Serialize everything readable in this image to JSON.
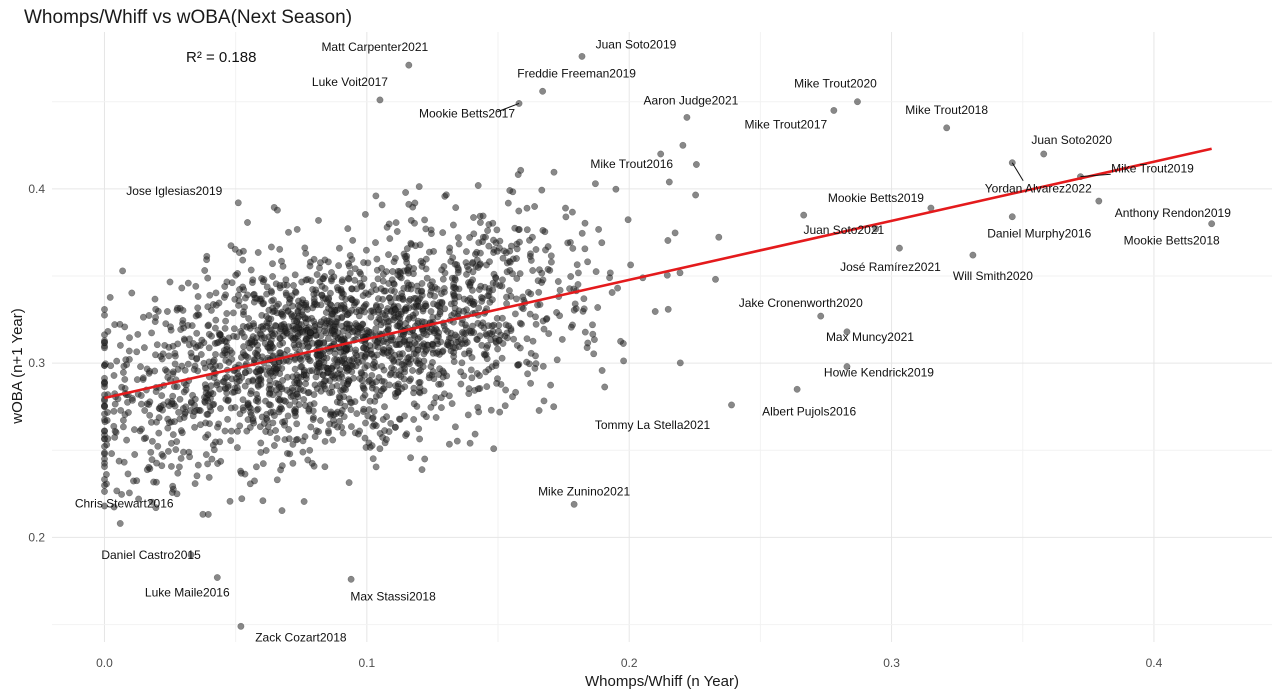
{
  "chart_data": {
    "type": "scatter",
    "title": "Whomps/Whiff vs wOBA(Next Season)",
    "xlabel": "Whomps/Whiff (n Year)",
    "ylabel": "wOBA (n+1 Year)",
    "xlim": [
      -0.02,
      0.445
    ],
    "ylim": [
      0.14,
      0.49
    ],
    "x_ticks": [
      0.0,
      0.1,
      0.2,
      0.3,
      0.4
    ],
    "x_tick_labels": [
      "0.0",
      "0.1",
      "0.2",
      "0.3",
      "0.4"
    ],
    "y_ticks": [
      0.2,
      0.3,
      0.4
    ],
    "y_tick_labels": [
      "0.2",
      "0.3",
      "0.4"
    ],
    "grid": true,
    "r_squared_label": "R² = 0.188",
    "trendline": {
      "x": [
        0.0,
        0.422
      ],
      "y": [
        0.28,
        0.423
      ],
      "color": "#e41a1c"
    },
    "point_color": "#262626",
    "cloud": {
      "description_free": true,
      "n": 2200,
      "x_center": 0.09,
      "x_spread": 0.045,
      "y_intercept": 0.28,
      "y_slope": 0.339,
      "y_spread": 0.03
    },
    "labeled_points": [
      {
        "name": "Matt Carpenter2021",
        "x": 0.116,
        "y": 0.471
      },
      {
        "name": "Juan Soto2019",
        "x": 0.182,
        "y": 0.476
      },
      {
        "name": "Freddie Freeman2019",
        "x": 0.167,
        "y": 0.456
      },
      {
        "name": "Luke Voit2017",
        "x": 0.105,
        "y": 0.451
      },
      {
        "name": "Mookie Betts2017",
        "x": 0.158,
        "y": 0.449
      },
      {
        "name": "Aaron Judge2021",
        "x": 0.222,
        "y": 0.441
      },
      {
        "name": "Mike Trout2020",
        "x": 0.287,
        "y": 0.45
      },
      {
        "name": "Mike Trout2017",
        "x": 0.278,
        "y": 0.445
      },
      {
        "name": "Mike Trout2018",
        "x": 0.321,
        "y": 0.435
      },
      {
        "name": "Mike Trout2016",
        "x": 0.212,
        "y": 0.42
      },
      {
        "name": "Juan Soto2020",
        "x": 0.358,
        "y": 0.42
      },
      {
        "name": "Mike Trout2019",
        "x": 0.372,
        "y": 0.407
      },
      {
        "name": "Jose Iglesias2019",
        "x": 0.051,
        "y": 0.392
      },
      {
        "name": "Mookie Betts2019",
        "x": 0.315,
        "y": 0.389
      },
      {
        "name": "Yordan Alvarez2022",
        "x": 0.346,
        "y": 0.415
      },
      {
        "name": "Anthony Rendon2019",
        "x": 0.379,
        "y": 0.393
      },
      {
        "name": "Daniel Murphy2016",
        "x": 0.346,
        "y": 0.384
      },
      {
        "name": "Juan Soto2021",
        "x": 0.294,
        "y": 0.377
      },
      {
        "name": "Mookie Betts2018",
        "x": 0.422,
        "y": 0.38
      },
      {
        "name": "José Ramírez2021",
        "x": 0.303,
        "y": 0.366
      },
      {
        "name": "Will Smith2020",
        "x": 0.331,
        "y": 0.362
      },
      {
        "name": "Jake Cronenworth2020",
        "x": 0.273,
        "y": 0.327
      },
      {
        "name": "Max Muncy2021",
        "x": 0.283,
        "y": 0.318
      },
      {
        "name": "Howie Kendrick2019",
        "x": 0.283,
        "y": 0.298
      },
      {
        "name": "Albert Pujols2016",
        "x": 0.264,
        "y": 0.285
      },
      {
        "name": "Tommy La Stella2021",
        "x": 0.239,
        "y": 0.276
      },
      {
        "name": "Mike Zunino2021",
        "x": 0.179,
        "y": 0.219
      },
      {
        "name": "Chris Stewart2016",
        "x": 0.006,
        "y": 0.208
      },
      {
        "name": "Daniel Castro2015",
        "x": 0.033,
        "y": 0.19
      },
      {
        "name": "Luke Maile2016",
        "x": 0.043,
        "y": 0.177
      },
      {
        "name": "Max Stassi2018",
        "x": 0.094,
        "y": 0.176
      },
      {
        "name": "Zack Cozart2018",
        "x": 0.052,
        "y": 0.149
      }
    ]
  }
}
